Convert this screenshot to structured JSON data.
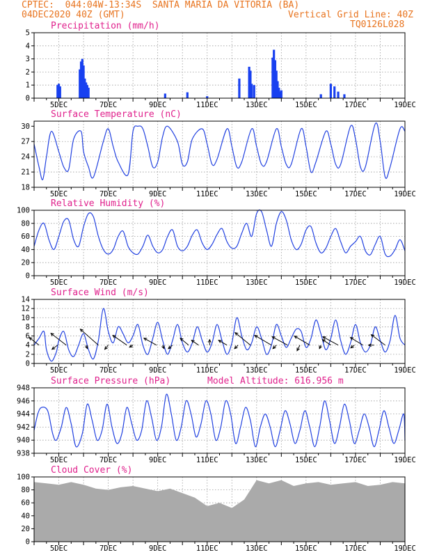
{
  "header": {
    "line1": "CPTEC:  044:04W-13:34S  SANTA MARIA DA VITORIA (BA)",
    "line2_left": "04DEC2020 40Z (GMT)",
    "line2_right": "Vertical Grid Line: 40Z",
    "line3_right": "TQ0126L028"
  },
  "colors": {
    "header": "#e8741f",
    "title": "#e0208c",
    "line": "#2040e0",
    "bar": "#1840f0",
    "cloud": "#aaaaaa"
  },
  "x_ticks": [
    "5DEC",
    "7DEC",
    "9DEC",
    "11DEC",
    "13DEC",
    "15DEC",
    "17DEC",
    "19DEC"
  ],
  "chart_data": [
    {
      "type": "bar",
      "title": "Precipitation (mm/h)",
      "ylim": [
        0,
        5
      ],
      "yticks": [
        "0",
        "1",
        "2",
        "3",
        "4",
        "5"
      ],
      "x_day_range": [
        4.0,
        19.0
      ],
      "x": [
        4.95,
        5.0,
        5.05,
        5.85,
        5.9,
        5.95,
        6.0,
        6.05,
        6.1,
        6.15,
        6.2,
        9.3,
        10.2,
        11.0,
        12.3,
        12.7,
        12.75,
        12.8,
        12.9,
        13.65,
        13.7,
        13.75,
        13.8,
        13.85,
        13.9,
        13.95,
        14.0,
        15.6,
        16.0,
        16.15,
        16.3,
        16.55
      ],
      "values": [
        1.0,
        1.1,
        0.9,
        2.2,
        2.8,
        3.0,
        2.5,
        1.5,
        1.2,
        1.0,
        0.8,
        0.35,
        0.45,
        0.15,
        1.5,
        2.4,
        2.1,
        1.1,
        1.0,
        3.1,
        3.7,
        2.9,
        2.1,
        1.3,
        0.8,
        0.5,
        0.6,
        0.3,
        1.1,
        0.9,
        0.5,
        0.3
      ]
    },
    {
      "type": "line",
      "title": "Surface Temperature (nC)",
      "ylim": [
        18,
        31
      ],
      "yticks": [
        "18",
        "21",
        "24",
        "27",
        "30"
      ],
      "x": [
        4.0,
        4.2,
        4.35,
        4.5,
        4.7,
        5.0,
        5.2,
        5.4,
        5.6,
        5.9,
        6.0,
        6.2,
        6.4,
        6.8,
        7.0,
        7.2,
        7.4,
        7.8,
        8.0,
        8.2,
        8.4,
        8.6,
        8.8,
        9.0,
        9.2,
        9.4,
        9.8,
        10.0,
        10.2,
        10.4,
        10.8,
        11.0,
        11.2,
        11.4,
        11.8,
        12.0,
        12.2,
        12.4,
        12.8,
        13.0,
        13.2,
        13.4,
        13.8,
        14.0,
        14.2,
        14.4,
        14.8,
        15.0,
        15.2,
        15.4,
        15.8,
        16.0,
        16.2,
        16.4,
        16.8,
        17.0,
        17.2,
        17.4,
        17.8,
        18.0,
        18.2,
        18.4,
        18.8,
        19.0
      ],
      "values": [
        26.5,
        22.0,
        19.5,
        24.0,
        29.0,
        25.0,
        22.0,
        21.5,
        27.5,
        29.0,
        25.0,
        22.0,
        20.0,
        27.0,
        29.5,
        26.0,
        23.0,
        20.5,
        29.0,
        30.0,
        29.5,
        26.0,
        22.0,
        23.0,
        28.0,
        30.0,
        27.0,
        22.5,
        23.0,
        27.5,
        29.5,
        26.5,
        22.5,
        23.5,
        29.5,
        26.0,
        22.0,
        23.0,
        29.5,
        26.0,
        22.5,
        23.0,
        29.5,
        26.0,
        22.5,
        22.5,
        29.5,
        26.0,
        21.0,
        23.0,
        29.0,
        26.5,
        22.5,
        22.5,
        30.0,
        27.5,
        22.0,
        22.0,
        30.5,
        27.0,
        20.0,
        22.0,
        29.5,
        29.0
      ]
    },
    {
      "type": "line",
      "title": "Relative Humidity (%)",
      "ylim": [
        0,
        100
      ],
      "yticks": [
        "0",
        "20",
        "40",
        "60",
        "80",
        "100"
      ],
      "x": [
        4.0,
        4.2,
        4.4,
        4.6,
        4.8,
        5.0,
        5.2,
        5.4,
        5.6,
        5.8,
        6.0,
        6.2,
        6.4,
        6.6,
        6.8,
        7.0,
        7.2,
        7.4,
        7.6,
        7.8,
        8.0,
        8.2,
        8.4,
        8.6,
        8.8,
        9.0,
        9.2,
        9.4,
        9.6,
        9.8,
        10.0,
        10.2,
        10.4,
        10.6,
        10.8,
        11.0,
        11.2,
        11.4,
        11.6,
        11.8,
        12.0,
        12.2,
        12.4,
        12.6,
        12.8,
        13.0,
        13.2,
        13.4,
        13.6,
        13.8,
        14.0,
        14.2,
        14.4,
        14.6,
        14.8,
        15.0,
        15.2,
        15.4,
        15.6,
        15.8,
        16.0,
        16.2,
        16.4,
        16.6,
        16.8,
        17.0,
        17.2,
        17.4,
        17.6,
        17.8,
        18.0,
        18.2,
        18.4,
        18.6,
        18.8,
        19.0
      ],
      "values": [
        45,
        70,
        80,
        55,
        40,
        60,
        83,
        85,
        55,
        45,
        75,
        95,
        90,
        60,
        40,
        33,
        40,
        60,
        68,
        45,
        35,
        33,
        45,
        62,
        45,
        35,
        40,
        60,
        70,
        45,
        38,
        45,
        62,
        70,
        50,
        40,
        48,
        63,
        72,
        52,
        42,
        45,
        65,
        80,
        60,
        95,
        98,
        70,
        45,
        80,
        98,
        85,
        55,
        40,
        48,
        70,
        75,
        50,
        35,
        42,
        60,
        72,
        52,
        35,
        45,
        52,
        60,
        38,
        32,
        48,
        60,
        33,
        30,
        40,
        55,
        38
      ]
    },
    {
      "type": "line",
      "title": "Surface Wind (m/s)",
      "ylim": [
        0,
        14
      ],
      "yticks": [
        "0",
        "2",
        "4",
        "6",
        "8",
        "10",
        "12",
        "14"
      ],
      "x": [
        4.0,
        4.2,
        4.4,
        4.5,
        4.7,
        4.9,
        5.0,
        5.2,
        5.4,
        5.6,
        5.8,
        6.0,
        6.2,
        6.4,
        6.6,
        6.8,
        7.0,
        7.2,
        7.4,
        7.6,
        7.8,
        8.0,
        8.2,
        8.4,
        8.6,
        8.8,
        9.0,
        9.2,
        9.4,
        9.6,
        9.8,
        10.0,
        10.2,
        10.4,
        10.6,
        10.8,
        11.0,
        11.2,
        11.4,
        11.6,
        11.8,
        12.0,
        12.2,
        12.4,
        12.6,
        12.8,
        13.0,
        13.2,
        13.4,
        13.6,
        13.8,
        14.0,
        14.2,
        14.4,
        14.6,
        14.8,
        15.0,
        15.2,
        15.4,
        15.6,
        15.8,
        16.0,
        16.2,
        16.4,
        16.6,
        16.8,
        17.0,
        17.2,
        17.4,
        17.6,
        17.8,
        18.0,
        18.2,
        18.4,
        18.6,
        18.8,
        19.0
      ],
      "values": [
        4.0,
        5.5,
        7.0,
        3.0,
        0.5,
        2.5,
        5.0,
        7.0,
        3.0,
        1.5,
        4.0,
        6.5,
        3.0,
        1.0,
        5.0,
        12.0,
        7.0,
        4.5,
        8.0,
        6.5,
        4.5,
        6.0,
        8.5,
        4.0,
        2.0,
        5.5,
        9.0,
        5.0,
        2.0,
        5.0,
        8.5,
        4.5,
        2.5,
        4.5,
        8.0,
        5.0,
        2.5,
        4.5,
        8.5,
        5.0,
        2.0,
        4.5,
        10.0,
        6.0,
        3.0,
        4.5,
        8.0,
        5.5,
        2.0,
        4.0,
        8.5,
        6.0,
        3.5,
        5.5,
        7.5,
        7.0,
        3.5,
        5.5,
        9.5,
        6.5,
        3.0,
        5.5,
        9.5,
        5.0,
        2.0,
        4.5,
        8.5,
        4.5,
        2.5,
        4.0,
        8.0,
        5.0,
        2.5,
        5.0,
        10.5,
        5.5,
        4.0
      ],
      "vectors": [
        {
          "t": 4.2,
          "dx": -14,
          "dy": 11
        },
        {
          "t": 4.95,
          "dx": -8,
          "dy": -6
        },
        {
          "t": 5.3,
          "dx": -22,
          "dy": 17
        },
        {
          "t": 6.1,
          "dx": 2,
          "dy": -5
        },
        {
          "t": 6.6,
          "dx": -26,
          "dy": 23
        },
        {
          "t": 7.0,
          "dx": -5,
          "dy": -6
        },
        {
          "t": 7.75,
          "dx": -20,
          "dy": 14
        },
        {
          "t": 8.0,
          "dx": -5,
          "dy": -3
        },
        {
          "t": 8.95,
          "dx": -18,
          "dy": 10
        },
        {
          "t": 9.2,
          "dx": 2,
          "dy": -5
        },
        {
          "t": 9.6,
          "dx": -6,
          "dy": -5
        },
        {
          "t": 10.25,
          "dx": -12,
          "dy": 10
        },
        {
          "t": 10.65,
          "dx": -10,
          "dy": 7
        },
        {
          "t": 11.1,
          "dx": 0,
          "dy": 8
        },
        {
          "t": 11.8,
          "dx": -12,
          "dy": 7
        },
        {
          "t": 12.25,
          "dx": -5,
          "dy": -5
        },
        {
          "t": 12.75,
          "dx": -22,
          "dy": 18
        },
        {
          "t": 13.6,
          "dx": -24,
          "dy": 14
        },
        {
          "t": 13.8,
          "dx": -5,
          "dy": -5
        },
        {
          "t": 14.25,
          "dx": -22,
          "dy": 12
        },
        {
          "t": 14.75,
          "dx": -4,
          "dy": -8
        },
        {
          "t": 15.15,
          "dx": -22,
          "dy": 13
        },
        {
          "t": 15.6,
          "dx": -2,
          "dy": -5
        },
        {
          "t": 16.0,
          "dx": -12,
          "dy": 8
        },
        {
          "t": 16.3,
          "dx": -22,
          "dy": 12
        },
        {
          "t": 16.95,
          "dx": -5,
          "dy": -4
        },
        {
          "t": 17.3,
          "dx": -18,
          "dy": 11
        },
        {
          "t": 17.75,
          "dx": -8,
          "dy": 0
        },
        {
          "t": 18.2,
          "dx": -20,
          "dy": 15
        }
      ]
    },
    {
      "type": "line",
      "title": "Surface Pressure (hPa)",
      "annotation": "Model Altitude: 616.956 m",
      "ylim": [
        938,
        948
      ],
      "yticks": [
        "938",
        "940",
        "942",
        "944",
        "946",
        "948"
      ],
      "x": [
        4.0,
        4.15,
        4.3,
        4.55,
        4.75,
        4.9,
        5.1,
        5.3,
        5.5,
        5.7,
        5.95,
        6.15,
        6.35,
        6.55,
        6.75,
        6.95,
        7.15,
        7.35,
        7.55,
        7.75,
        7.95,
        8.15,
        8.35,
        8.55,
        8.75,
        8.95,
        9.15,
        9.35,
        9.55,
        9.75,
        9.95,
        10.15,
        10.35,
        10.55,
        10.75,
        10.95,
        11.15,
        11.35,
        11.55,
        11.75,
        11.95,
        12.15,
        12.35,
        12.55,
        12.75,
        12.95,
        13.15,
        13.35,
        13.55,
        13.75,
        13.95,
        14.15,
        14.35,
        14.55,
        14.75,
        14.95,
        15.15,
        15.35,
        15.55,
        15.75,
        15.95,
        16.15,
        16.35,
        16.55,
        16.75,
        16.95,
        17.15,
        17.35,
        17.55,
        17.75,
        17.95,
        18.15,
        18.35,
        18.55,
        18.75,
        18.95,
        19.0
      ],
      "values": [
        941.5,
        944.0,
        945.0,
        944.5,
        941.0,
        940.0,
        942.0,
        945.0,
        942.5,
        939.0,
        941.0,
        945.5,
        943.0,
        940.0,
        941.5,
        945.5,
        942.0,
        939.5,
        941.0,
        945.0,
        942.5,
        940.0,
        941.5,
        946.0,
        943.5,
        940.0,
        942.0,
        947.0,
        944.0,
        940.0,
        942.0,
        946.0,
        944.0,
        940.5,
        942.5,
        946.0,
        944.0,
        940.0,
        942.0,
        946.0,
        944.0,
        939.5,
        942.0,
        945.0,
        943.0,
        939.0,
        942.0,
        944.0,
        942.0,
        939.0,
        941.5,
        944.5,
        942.5,
        939.5,
        941.5,
        944.5,
        942.0,
        939.0,
        942.0,
        946.0,
        943.0,
        939.5,
        942.0,
        945.5,
        943.0,
        939.5,
        941.5,
        944.0,
        942.0,
        939.0,
        941.5,
        944.5,
        942.0,
        939.5,
        941.5,
        944.0,
        940.0
      ]
    },
    {
      "type": "area",
      "title": "Cloud Cover (%)",
      "ylim": [
        0,
        100
      ],
      "yticks": [
        "0",
        "20",
        "40",
        "60",
        "80",
        "100"
      ],
      "x": [
        4.0,
        4.5,
        5.0,
        5.5,
        6.0,
        6.5,
        7.0,
        7.5,
        8.0,
        8.5,
        9.0,
        9.5,
        10.0,
        10.5,
        11.0,
        11.5,
        12.0,
        12.5,
        13.0,
        13.5,
        14.0,
        14.5,
        15.0,
        15.5,
        16.0,
        16.5,
        17.0,
        17.5,
        18.0,
        18.5,
        19.0
      ],
      "values": [
        92,
        90,
        88,
        92,
        88,
        82,
        80,
        84,
        86,
        82,
        78,
        82,
        75,
        68,
        55,
        60,
        52,
        65,
        95,
        90,
        95,
        86,
        90,
        92,
        88,
        90,
        92,
        86,
        88,
        92,
        90
      ]
    }
  ]
}
